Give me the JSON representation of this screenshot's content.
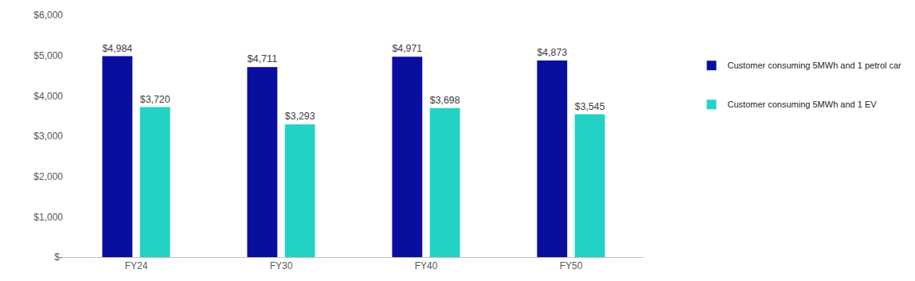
{
  "chart_data": {
    "type": "bar",
    "categories": [
      "FY24",
      "FY30",
      "FY40",
      "FY50"
    ],
    "series": [
      {
        "name": "Customer consuming 5MWh and 1 petrol car",
        "color": "#0a0e9e",
        "values": [
          4984,
          4711,
          4971,
          4873
        ],
        "value_labels": [
          "$4,984",
          "$4,711",
          "$4,971",
          "$4,873"
        ]
      },
      {
        "name": "Customer consuming 5MWh and 1 EV",
        "color": "#22d3c5",
        "values": [
          3720,
          3293,
          3698,
          3545
        ],
        "value_labels": [
          "$3,720",
          "$3,293",
          "$3,698",
          "$3,545"
        ]
      }
    ],
    "ylim": [
      0,
      6000
    ],
    "yticks": [
      {
        "value": 0,
        "label": "$-"
      },
      {
        "value": 1000,
        "label": "$1,000"
      },
      {
        "value": 2000,
        "label": "$2,000"
      },
      {
        "value": 3000,
        "label": "$3,000"
      },
      {
        "value": 4000,
        "label": "$4,000"
      },
      {
        "value": 5000,
        "label": "$5,000"
      },
      {
        "value": 6000,
        "label": "$6,000"
      }
    ],
    "grid": false,
    "data_labels": true,
    "legend": "right"
  }
}
